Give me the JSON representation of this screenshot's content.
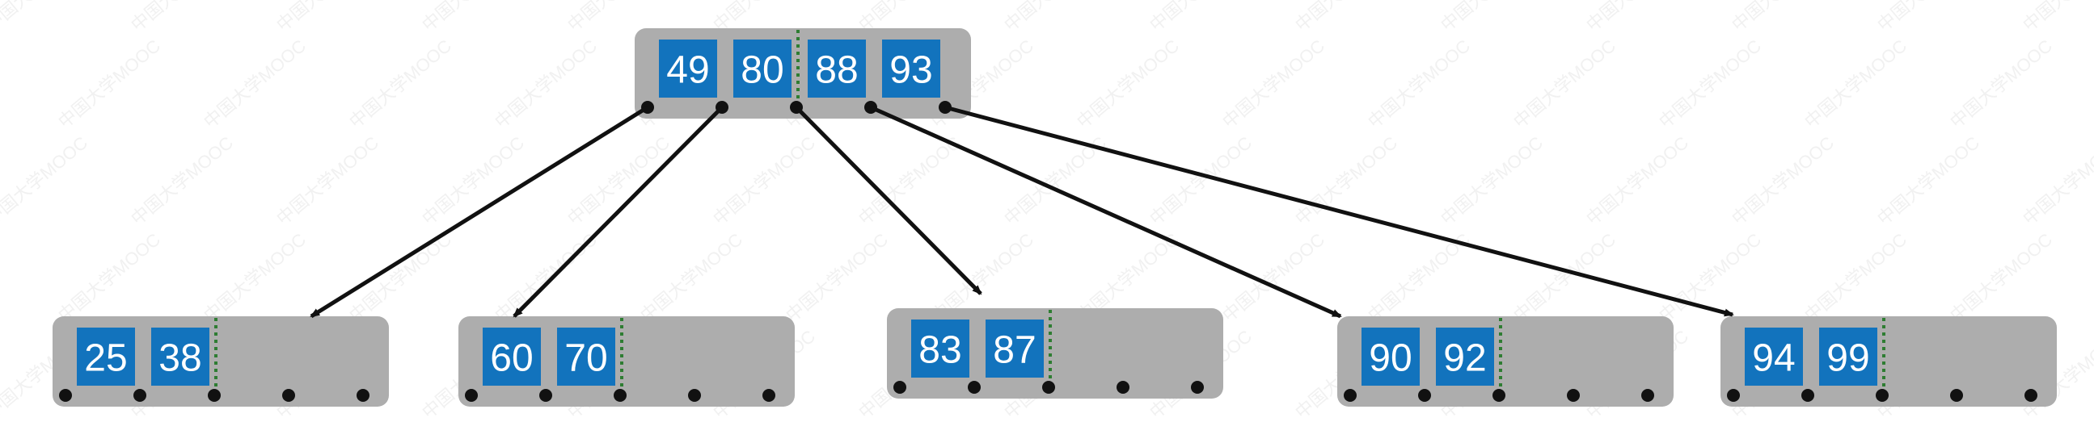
{
  "diagram": {
    "type": "b-tree",
    "watermark_text": "中国大学MOOC",
    "colors": {
      "node_fill": "#adadad",
      "key_fill": "#1273bd",
      "key_text": "#ffffff",
      "pointer": "#111111",
      "arrow": "#111111",
      "split_marker": "#2e7d32",
      "watermark": "#f1f1f1"
    },
    "root": {
      "keys": [
        "49",
        "80",
        "88",
        "93"
      ],
      "split_after_key": 2
    },
    "children": [
      {
        "keys": [
          "25",
          "38"
        ],
        "split_after_key": 2
      },
      {
        "keys": [
          "60",
          "70"
        ],
        "split_after_key": 2
      },
      {
        "keys": [
          "83",
          "87"
        ],
        "split_after_key": 2
      },
      {
        "keys": [
          "90",
          "92"
        ],
        "split_after_key": 2
      },
      {
        "keys": [
          "94",
          "99"
        ],
        "split_after_key": 2
      }
    ]
  }
}
